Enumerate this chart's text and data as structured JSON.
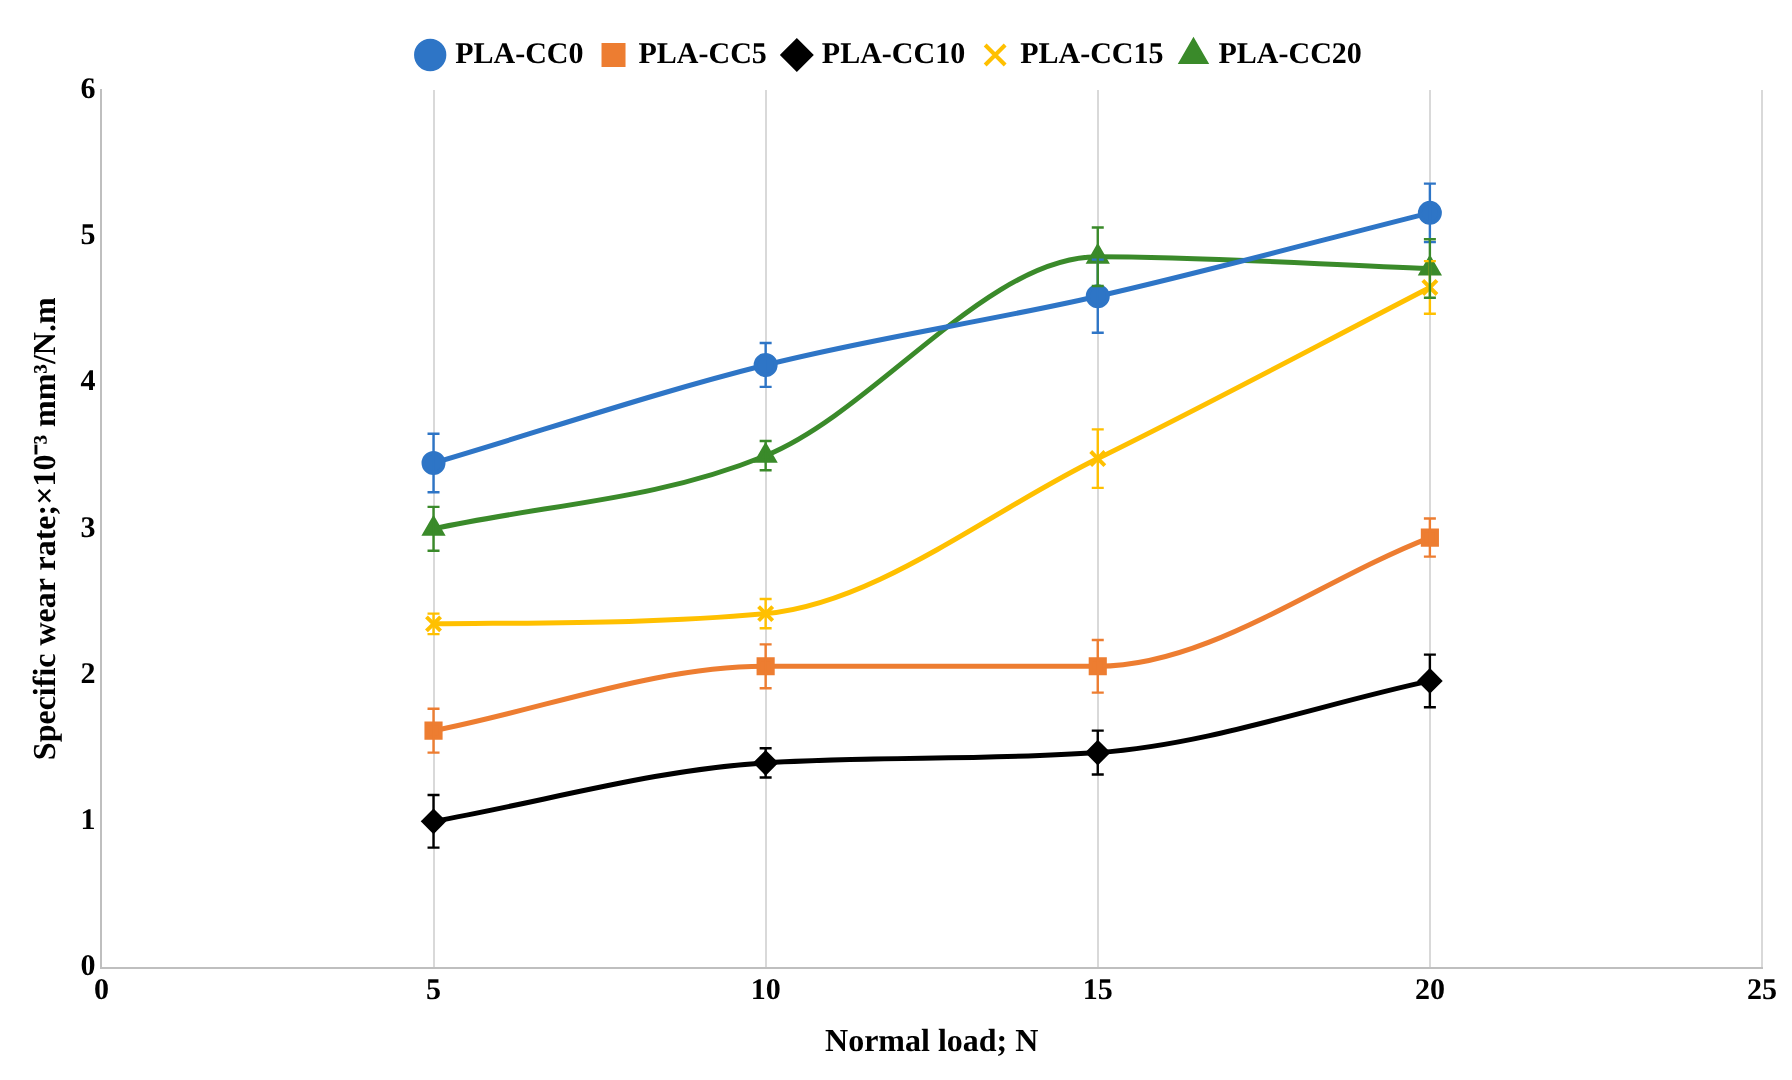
{
  "chart_data": {
    "type": "line",
    "xlabel": "Normal load; N",
    "ylabel": "Specific wear rate;×10⁻³ mm³/N.m",
    "x": [
      5,
      10,
      15,
      20
    ],
    "xlim": [
      0,
      25
    ],
    "xticks": [
      0,
      5,
      10,
      15,
      20,
      25
    ],
    "ylim": [
      0,
      6
    ],
    "yticks": [
      0,
      1,
      2,
      3,
      4,
      5,
      6
    ],
    "grid": "x",
    "legend": "top",
    "series": [
      {
        "name": "PLA-CC0",
        "color": "#2e75c6",
        "marker": "circle",
        "values": [
          3.45,
          4.12,
          4.59,
          5.16
        ],
        "errors": [
          0.2,
          0.15,
          0.25,
          0.2
        ]
      },
      {
        "name": "PLA-CC5",
        "color": "#ed7d31",
        "marker": "square",
        "values": [
          1.62,
          2.06,
          2.06,
          2.94
        ],
        "errors": [
          0.15,
          0.15,
          0.18,
          0.13
        ]
      },
      {
        "name": "PLA-CC10",
        "color": "#000000",
        "marker": "diamond",
        "values": [
          1.0,
          1.4,
          1.47,
          1.96
        ],
        "errors": [
          0.18,
          0.1,
          0.15,
          0.18
        ]
      },
      {
        "name": "PLA-CC15",
        "color": "#ffc000",
        "marker": "cross",
        "values": [
          2.35,
          2.42,
          3.48,
          4.65
        ],
        "errors": [
          0.07,
          0.1,
          0.2,
          0.18
        ]
      },
      {
        "name": "PLA-CC20",
        "color": "#3a8a2a",
        "marker": "triangle",
        "values": [
          3.0,
          3.5,
          4.86,
          4.78
        ],
        "errors": [
          0.15,
          0.1,
          0.2,
          0.2
        ]
      }
    ]
  }
}
